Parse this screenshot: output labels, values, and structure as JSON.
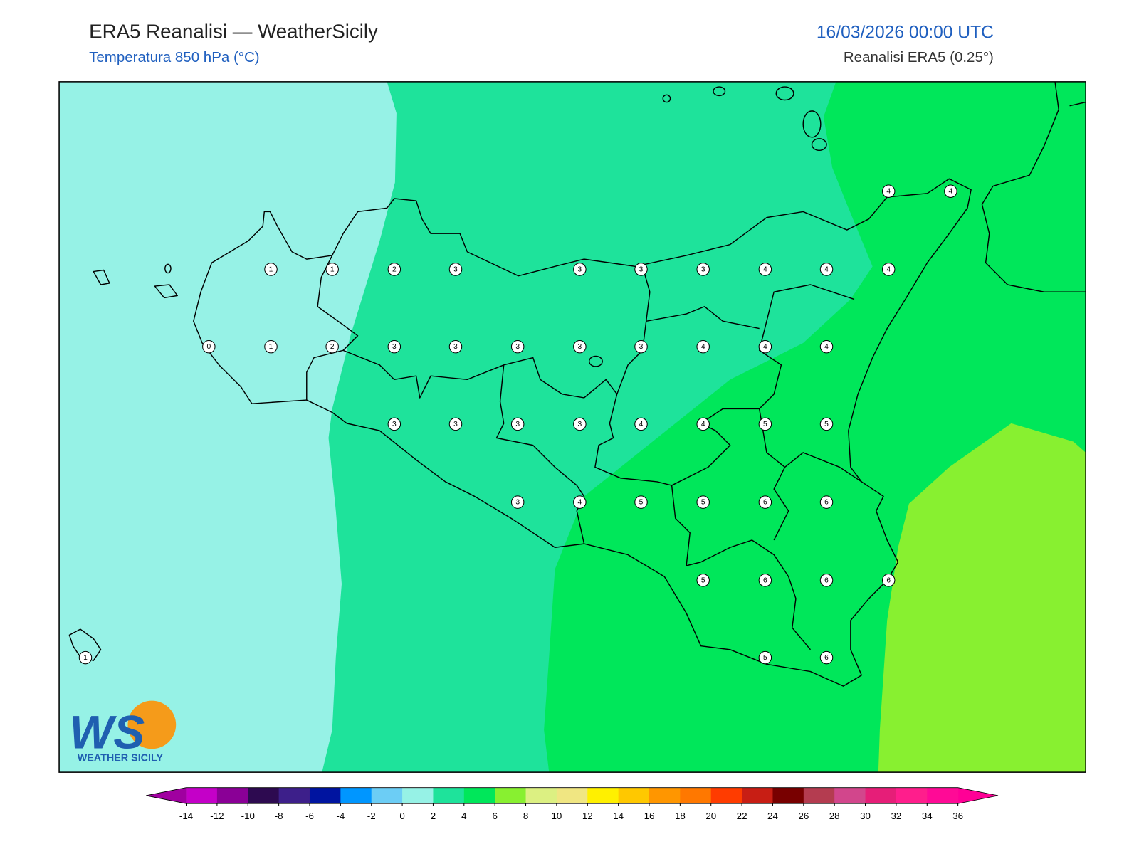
{
  "header": {
    "title": "ERA5 Reanalisi — WeatherSicily",
    "subtitle": "Temperatura 850 hPa (°C)",
    "date": "16/03/2026 00:00 UTC",
    "source": "Reanalisi ERA5 (0.25°)"
  },
  "stations": {
    "values": [
      4,
      4,
      1,
      1,
      2,
      3,
      3,
      3,
      3,
      4,
      4,
      4,
      0,
      1,
      2,
      3,
      3,
      3,
      3,
      3,
      4,
      4,
      4,
      3,
      3,
      3,
      3,
      4,
      4,
      5,
      5,
      3,
      4,
      5,
      5,
      6,
      6,
      5,
      6,
      6,
      6,
      1,
      5,
      6
    ]
  },
  "colorbar": {
    "ticks": [
      -14,
      -12,
      -10,
      -8,
      -6,
      -4,
      -2,
      0,
      2,
      4,
      6,
      8,
      10,
      12,
      14,
      16,
      18,
      20,
      22,
      24,
      26,
      28,
      30,
      32,
      34,
      36
    ],
    "colors": [
      "#c400c8",
      "#8a0096",
      "#2d0a50",
      "#3d1f8a",
      "#0014a0",
      "#0096ff",
      "#6ccdf5",
      "#96f2e6",
      "#1ee39b",
      "#00e75a",
      "#88f030",
      "#dcf082",
      "#f0e682",
      "#fff000",
      "#ffc800",
      "#ff9600",
      "#ff7800",
      "#ff3c00",
      "#c81e14",
      "#780000",
      "#b43c50",
      "#d2468c",
      "#e61e78",
      "#ff1e8c",
      "#ff0a96"
    ],
    "under": "#a000a0",
    "over": "#ff0096"
  },
  "logo": {
    "mark": "WS",
    "text": "WEATHER SICILY"
  }
}
